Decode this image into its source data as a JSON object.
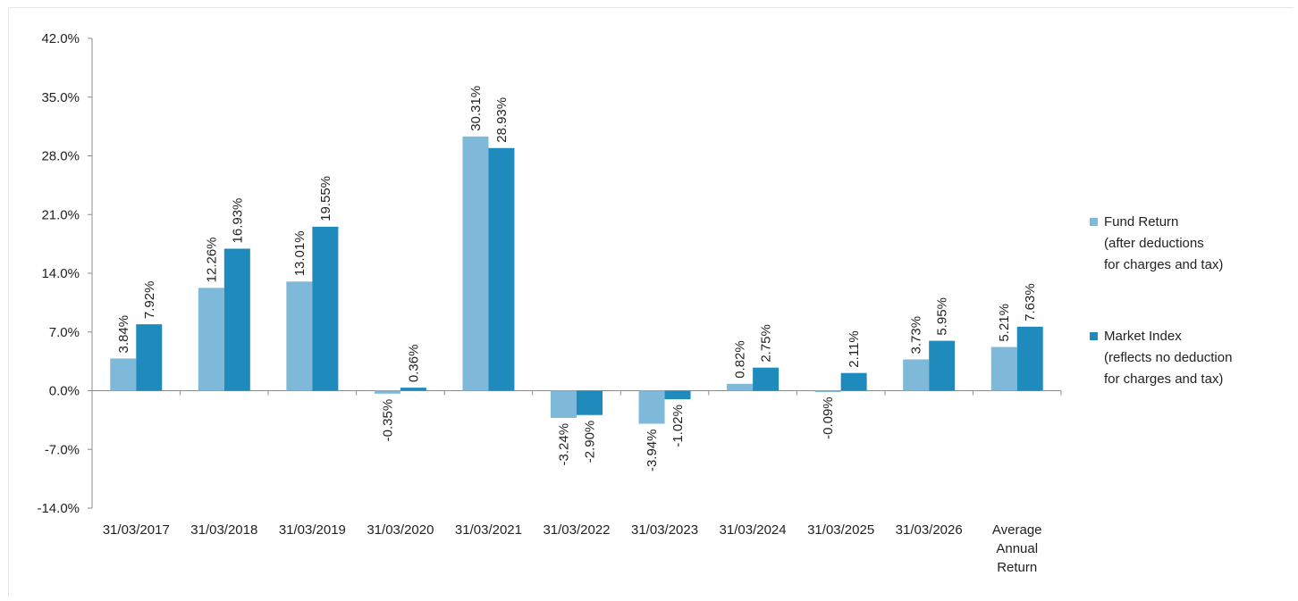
{
  "chart_data": {
    "type": "bar",
    "title": "",
    "xlabel": "",
    "ylabel": "",
    "ylim": [
      -14,
      42
    ],
    "yticks": [
      -14,
      -7,
      0,
      7,
      14,
      21,
      28,
      35,
      42
    ],
    "ytick_labels": [
      "-14.0%",
      "-7.0%",
      "0.0%",
      "7.0%",
      "14.0%",
      "21.0%",
      "28.0%",
      "35.0%",
      "42.0%"
    ],
    "grid": false,
    "legend_position": "right",
    "categories": [
      [
        "31/03/2017"
      ],
      [
        "31/03/2018"
      ],
      [
        "31/03/2019"
      ],
      [
        "31/03/2020"
      ],
      [
        "31/03/2021"
      ],
      [
        "31/03/2022"
      ],
      [
        "31/03/2023"
      ],
      [
        "31/03/2024"
      ],
      [
        "31/03/2025"
      ],
      [
        "31/03/2026"
      ],
      [
        "Average",
        "Annual",
        "Return"
      ]
    ],
    "series": [
      {
        "name_lines": [
          "Fund Return",
          "(after deductions",
          "for charges and tax)"
        ],
        "color": "#7fb9d9",
        "values": [
          3.84,
          12.26,
          13.01,
          -0.35,
          30.31,
          -3.24,
          -3.94,
          0.82,
          -0.09,
          3.73,
          5.21
        ],
        "labels": [
          "3.84%",
          "12.26%",
          "13.01%",
          "-0.35%",
          "30.31%",
          "-3.24%",
          "-3.94%",
          "0.82%",
          "-0.09%",
          "3.73%",
          "5.21%"
        ]
      },
      {
        "name_lines": [
          "Market Index",
          "(reflects no deduction",
          "for charges and tax)"
        ],
        "color": "#1f8bbd",
        "values": [
          7.92,
          16.93,
          19.55,
          0.36,
          28.93,
          -2.9,
          -1.02,
          2.75,
          2.11,
          5.95,
          7.63
        ],
        "labels": [
          "7.92%",
          "16.93%",
          "19.55%",
          "0.36%",
          "28.93%",
          "-2.90%",
          "-1.02%",
          "2.75%",
          "2.11%",
          "5.95%",
          "7.63%"
        ]
      }
    ]
  }
}
